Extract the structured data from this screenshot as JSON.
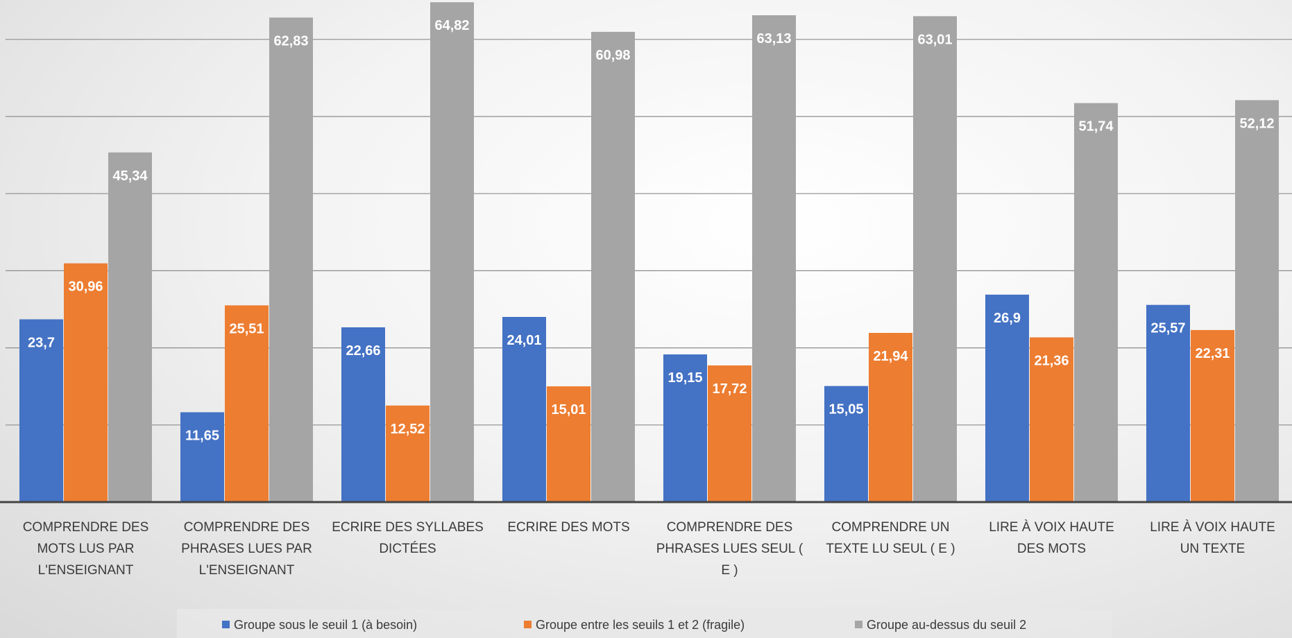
{
  "chart_data": {
    "type": "bar",
    "categories": [
      "COMPRENDRE DES MOTS LUS PAR L'ENSEIGNANT",
      "COMPRENDRE DES PHRASES LUES PAR L'ENSEIGNANT",
      "ECRIRE DES SYLLABES DICTÉES",
      "ECRIRE DES MOTS",
      "COMPRENDRE DES PHRASES LUES SEUL ( E )",
      "COMPRENDRE UN TEXTE LU SEUL ( E )",
      "LIRE À VOIX HAUTE DES MOTS",
      "LIRE À VOIX HAUTE UN TEXTE"
    ],
    "category_lines": [
      [
        "COMPRENDRE DES",
        "MOTS LUS PAR",
        "L'ENSEIGNANT"
      ],
      [
        "COMPRENDRE DES",
        "PHRASES LUES PAR",
        "L'ENSEIGNANT"
      ],
      [
        "ECRIRE DES SYLLABES",
        "DICTÉES"
      ],
      [
        "ECRIRE DES MOTS"
      ],
      [
        "COMPRENDRE DES",
        "PHRASES LUES SEUL (",
        "E )"
      ],
      [
        "COMPRENDRE UN",
        "TEXTE LU SEUL ( E )"
      ],
      [
        "LIRE À VOIX HAUTE",
        "DES MOTS"
      ],
      [
        "LIRE À VOIX HAUTE",
        "UN TEXTE"
      ]
    ],
    "series": [
      {
        "name": "Groupe sous le seuil 1 (à besoin)",
        "color": "#4472C4",
        "values": [
          23.7,
          11.65,
          22.66,
          24.01,
          19.15,
          15.05,
          26.9,
          25.57
        ],
        "labels": [
          "23,7",
          "11,65",
          "22,66",
          "24,01",
          "19,15",
          "15,05",
          "26,9",
          "25,57"
        ]
      },
      {
        "name": "Groupe entre les seuils 1 et 2 (fragile)",
        "color": "#ED7D31",
        "values": [
          30.96,
          25.51,
          12.52,
          15.01,
          17.72,
          21.94,
          21.36,
          22.31
        ],
        "labels": [
          "30,96",
          "25,51",
          "12,52",
          "15,01",
          "17,72",
          "21,94",
          "21,36",
          "22,31"
        ]
      },
      {
        "name": "Groupe au-dessus du seuil 2",
        "color": "#A5A5A5",
        "values": [
          45.34,
          62.83,
          64.82,
          60.98,
          63.13,
          63.01,
          51.74,
          52.12
        ],
        "labels": [
          "45,34",
          "62,83",
          "64,82",
          "60,98",
          "63,13",
          "63,01",
          "51,74",
          "52,12"
        ]
      }
    ],
    "ylim": [
      0,
      70
    ],
    "gridlines": [
      10,
      20,
      30,
      40,
      50,
      60
    ],
    "grid": true,
    "legend_position": "bottom"
  }
}
